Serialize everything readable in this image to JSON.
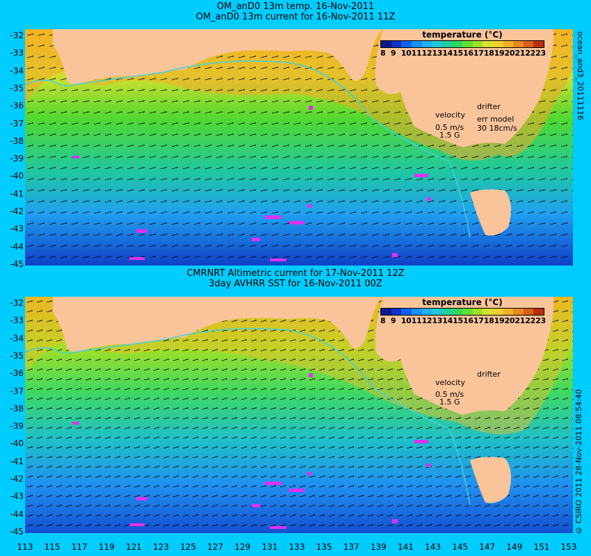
{
  "top": {
    "title_line1": "OM_anD0 13m temp. 16-Nov-2011",
    "title_line2": "OM_anD0 13m current for 16-Nov-2011 11Z",
    "side_label": "ocean_and3_20111116",
    "legend_title": "temperature (°C)",
    "velocity_label": "velocity",
    "velocity_value": "0.5 m/s",
    "velocity_sub": "1.5 G",
    "drifter_label": "drifter",
    "err_label": "err model",
    "err_value": "30 18cm/s"
  },
  "bottom": {
    "title_line1": "CMRNRT Altimetric current for 17-Nov-2011 12Z",
    "title_line2": "3day AVHRR SST for 16-Nov-2011 00Z",
    "side_label": "© CSIRO 2011  28-Nov-2011 08:54:40",
    "legend_title": "temperature (°C)",
    "velocity_label": "velocity",
    "velocity_value": "0.5 m/s",
    "velocity_sub": "1.5 G",
    "drifter_label": "drifter"
  },
  "legend_ticks": [
    "8",
    "9",
    "10",
    "11",
    "12",
    "13",
    "14",
    "15",
    "16",
    "17",
    "18",
    "19",
    "20",
    "21",
    "22",
    "23"
  ],
  "legend_colors": [
    "#0a1a8c",
    "#1030c8",
    "#1060f0",
    "#1890f8",
    "#20b0f0",
    "#20c8d8",
    "#20d0a0",
    "#30d860",
    "#60e030",
    "#a0e028",
    "#d8e030",
    "#f0d030",
    "#f0b028",
    "#e88820",
    "#d86018",
    "#b83010"
  ],
  "y_ticks": [
    "-32",
    "-33",
    "-34",
    "-35",
    "-36",
    "-37",
    "-38",
    "-39",
    "-40",
    "-41",
    "-42",
    "-43",
    "-44",
    "-45"
  ],
  "x_ticks": [
    "113",
    "115",
    "117",
    "119",
    "121",
    "123",
    "125",
    "127",
    "129",
    "131",
    "133",
    "135",
    "137",
    "139",
    "141",
    "143",
    "145",
    "147",
    "149",
    "151",
    "153"
  ],
  "colors": {
    "background": "#00ccff",
    "land": "#f9c49a",
    "drifter": "#e030f0"
  }
}
